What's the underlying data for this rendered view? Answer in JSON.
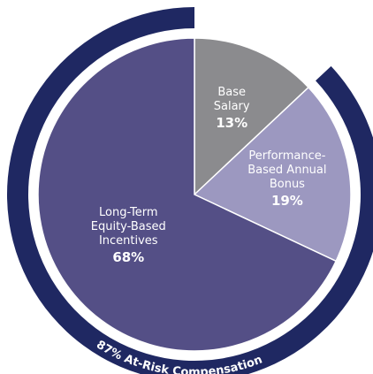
{
  "chart_data": {
    "type": "pie",
    "categories": [
      "Base Salary",
      "Performance-Based Annual Bonus",
      "Long-Term Equity-Based Incentives"
    ],
    "values": [
      13,
      19,
      68
    ],
    "value_labels": [
      "13%",
      "19%",
      "68%"
    ],
    "colors": [
      "#8b8b8e",
      "#9c98c0",
      "#544f86"
    ],
    "annotation": "87% At-Risk Compensation",
    "ring_color": "#1f2862"
  }
}
